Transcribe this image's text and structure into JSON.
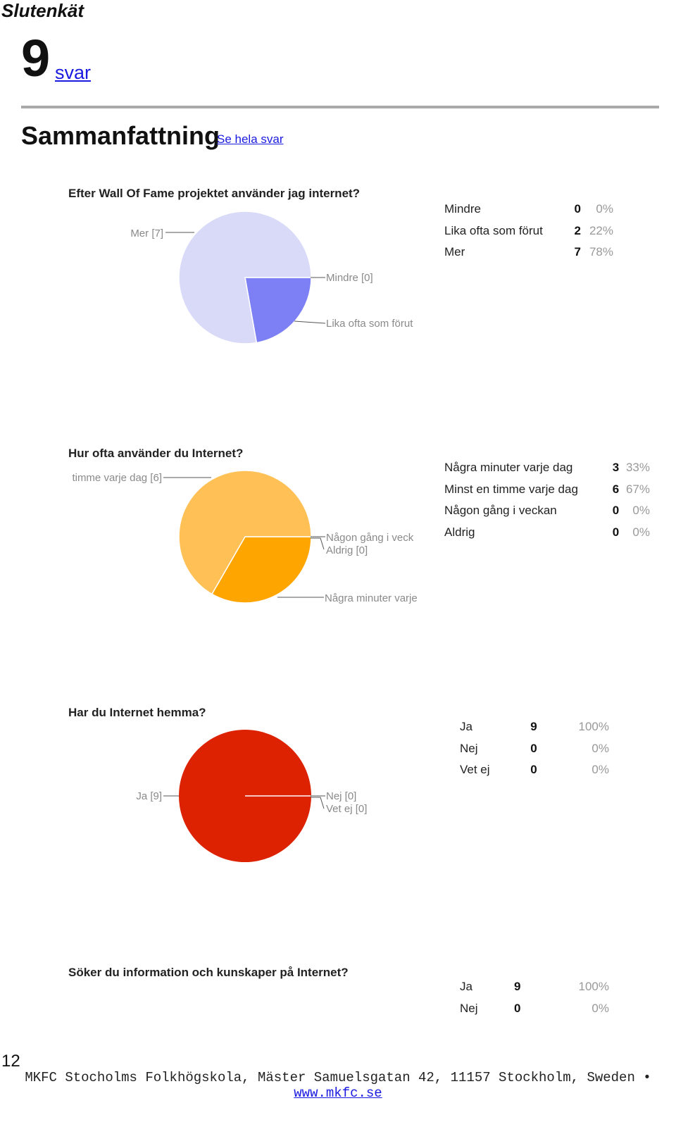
{
  "document": {
    "title": "Slutenkät",
    "response_count": "9",
    "response_link": "svar",
    "summary_heading": "Sammanfattning",
    "summary_link": "Se hela svar",
    "page_number": "12",
    "footer_address": "MKFC Stocholms Folkhögskola, Mäster Samuelsgatan 42, 11157 Stockholm, Sweden •",
    "footer_url": "www.mkfc.se"
  },
  "chart_data": [
    {
      "type": "pie",
      "title": "Efter Wall Of Fame projektet använder jag internet?",
      "labels": [
        "Mindre",
        "Lika ofta som förut",
        "Mer"
      ],
      "counts": [
        0,
        2,
        7
      ],
      "percents": [
        "0%",
        "22%",
        "78%"
      ],
      "colors": [
        "#c7c9f7",
        "#7d80f4",
        "#d9daf8"
      ],
      "callouts": [
        "Mindre [0]",
        "Lika ofta som förut",
        "Mer [7]"
      ]
    },
    {
      "type": "pie",
      "title": "Hur ofta använder du Internet?",
      "labels": [
        "Några minuter varje dag",
        "Minst en timme varje dag",
        "Någon gång i veckan",
        "Aldrig"
      ],
      "counts": [
        3,
        6,
        0,
        0
      ],
      "percents": [
        "33%",
        "67%",
        "0%",
        "0%"
      ],
      "colors": [
        "#ffa500",
        "#ffc055",
        "#e08a00",
        "#cc7a00"
      ],
      "callouts": [
        "Några minuter varje",
        "timme varje dag [6]",
        "Någon gång i veck",
        "Aldrig [0]"
      ]
    },
    {
      "type": "pie",
      "title": "Har du Internet hemma?",
      "labels": [
        "Ja",
        "Nej",
        "Vet ej"
      ],
      "counts": [
        9,
        0,
        0
      ],
      "percents": [
        "100%",
        "0%",
        "0%"
      ],
      "colors": [
        "#dc2200",
        "#b51a00",
        "#8f1400"
      ],
      "callouts": [
        "Ja [9]",
        "Nej [0]",
        "Vet ej [0]"
      ]
    },
    {
      "type": "table",
      "title": "Söker du information och kunskaper på Internet?",
      "labels": [
        "Ja",
        "Nej"
      ],
      "counts": [
        9,
        0
      ],
      "percents": [
        "100%",
        "0%"
      ]
    }
  ]
}
